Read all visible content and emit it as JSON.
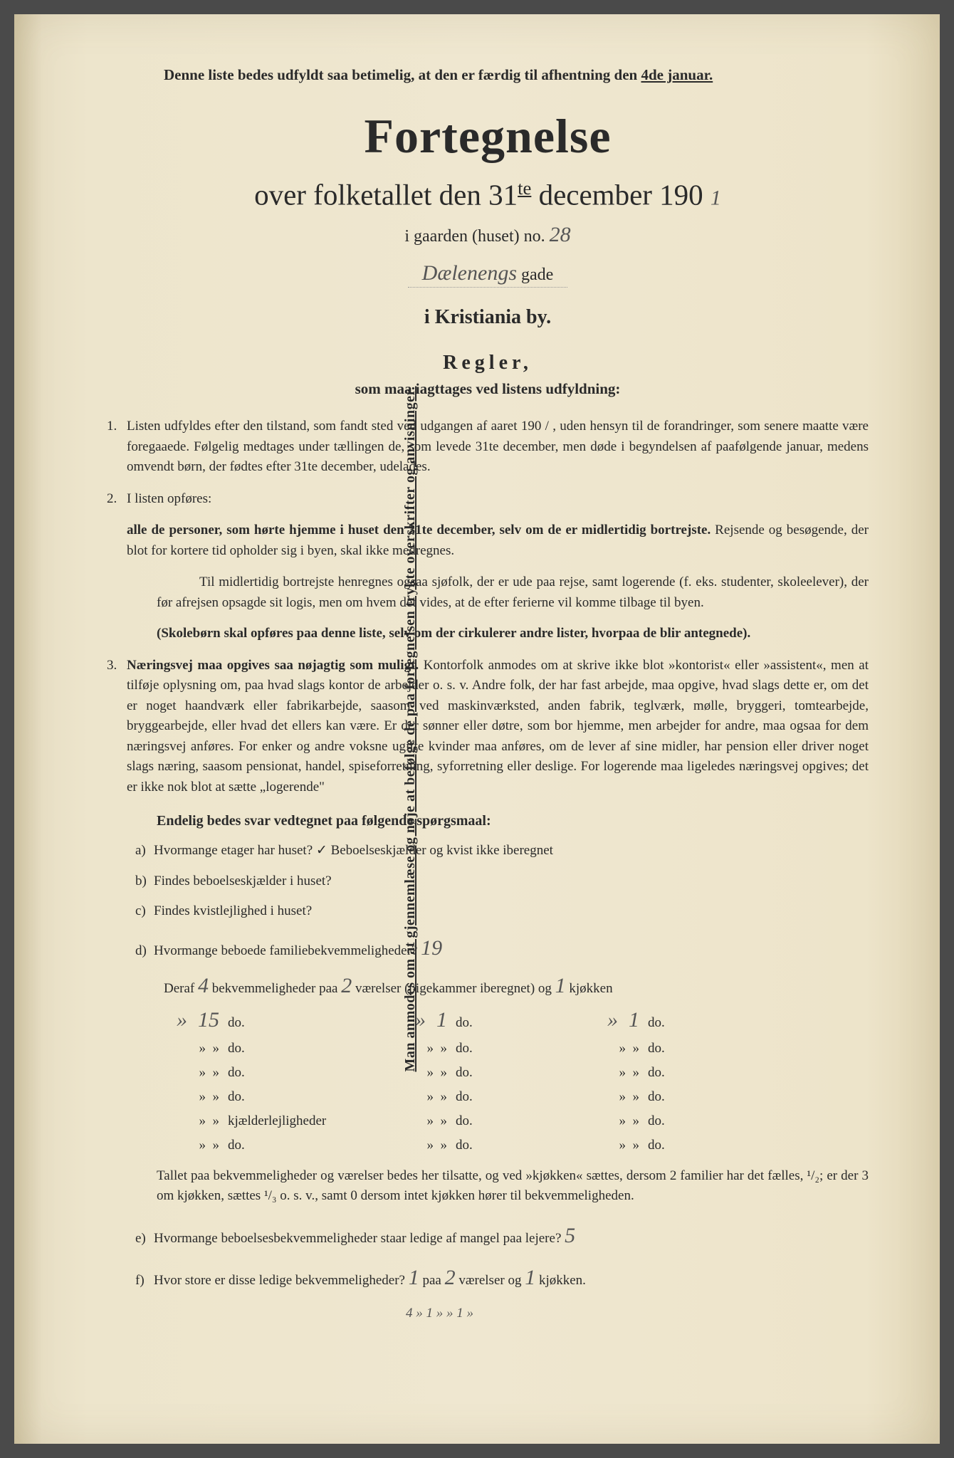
{
  "vertical": "Man anmodes om at gjennemlæse og nøje at befølge de paa fortegnelsen trykte overskrifter og anvisninger.",
  "header_note": "Denne liste bedes udfyldt saa betimelig, at den er færdig til afhentning den ",
  "header_date": "4de januar.",
  "title": "Fortegnelse",
  "subtitle_pre": "over folketallet den 31",
  "subtitle_sup": "te",
  "subtitle_mid": " december 190",
  "year_hand": "1",
  "house_pre": "i gaarden (huset) no. ",
  "house_no": "28",
  "street_hand": "Dælenengs",
  "street_suffix": " gade",
  "city": "i Kristiania by.",
  "regler": "Regler,",
  "regler_sub": "som maa iagttages ved listens udfyldning:",
  "rule1_num": "1.",
  "rule1": "Listen udfyldes efter den tilstand, som fandt sted ved udgangen af aaret 190 / , uden hensyn til de forandringer, som senere maatte være foregaaede. Følgelig medtages under tællingen de, som levede 31te december, men døde i begyndelsen af paafølgende januar, medens omvendt børn, der fødtes efter 31te december, udelades.",
  "rule2_num": "2.",
  "rule2": "I listen opføres:",
  "rule2a": "alle de personer, som hørte hjemme i huset den 31te december, selv om de er midlertidig bortrejste.",
  "rule2a_tail": " Rejsende og besøgende, der blot for kortere tid opholder sig i byen, skal ikke medregnes.",
  "rule2b": "Til midlertidig bortrejste henregnes ogsaa sjøfolk, der er ude paa rejse, samt logerende (f. eks. studenter, skoleelever), der før afrejsen opsagde sit logis, men om hvem det vides, at de efter ferierne vil komme tilbage til byen.",
  "rule2c": "(Skolebørn skal opføres paa denne liste, selv om der cirkulerer andre lister, hvorpaa de blir antegnede).",
  "rule3_num": "3.",
  "rule3_start": "Næringsvej maa opgives saa nøjagtig som muligt.",
  "rule3_body": " Kontorfolk anmodes om at skrive ikke blot »kontorist« eller »assistent«, men at tilføje oplysning om, paa hvad slags kontor de arbejder o. s. v. Andre folk, der har fast arbejde, maa opgive, hvad slags dette er, om det er noget haandværk eller fabrikarbejde, saasom ved maskinværksted, anden fabrik, teglværk, mølle, bryggeri, tomtearbejde, bryggearbejde, eller hvad det ellers kan være. Er der sønner eller døtre, som bor hjemme, men arbejder for andre, maa ogsaa for dem næringsvej anføres. For enker og andre voksne ugifte kvinder maa anføres, om de lever af sine midler, har pension eller driver noget slags næring, saasom pensionat, handel, spiseforretning, syforretning eller deslige. For logerende maa ligeledes næringsvej opgives; det er ikke nok blot at sætte „logerende\"",
  "questions_title": "Endelig bedes svar vedtegnet paa følgende spørgsmaal:",
  "qa_label": "a)",
  "qa": "Hvormange etager har huset? ✓ Beboelseskjælder og kvist ikke iberegnet",
  "qb_label": "b)",
  "qb": "Findes beboelseskjælder i huset?",
  "qc_label": "c)",
  "qc": "Findes kvistlejlighed i huset?",
  "qd_label": "d)",
  "qd": "Hvormange beboede familiebekvemmeligheder? ",
  "qd_hand": "19",
  "deraf_pre": "Deraf ",
  "deraf_n1": "4",
  "deraf_mid1": " bekvemmeligheder paa ",
  "deraf_n2": "2",
  "deraf_mid2": " værelser (pigekammer iberegnet) og ",
  "deraf_n3": "1",
  "deraf_end": " kjøkken",
  "rows": [
    {
      "c1": "15",
      "c2": "do.",
      "c3": "1",
      "c4": "do.",
      "c5": "1",
      "c6": "do."
    },
    {
      "c1": "»",
      "c2": "do.",
      "c3": "»",
      "c4": "do.",
      "c5": "»",
      "c6": "do."
    },
    {
      "c1": "»",
      "c2": "do.",
      "c3": "»",
      "c4": "do.",
      "c5": "»",
      "c6": "do."
    },
    {
      "c1": "»",
      "c2": "do.",
      "c3": "»",
      "c4": "do.",
      "c5": "»",
      "c6": "do."
    },
    {
      "c1": "»",
      "c2": "kjælderlejligheder",
      "c3": "»",
      "c4": "do.",
      "c5": "»",
      "c6": "do."
    },
    {
      "c1": "»",
      "c2": "do.",
      "c3": "»",
      "c4": "do.",
      "c5": "»",
      "c6": "do."
    }
  ],
  "footnote": "Tallet paa bekvemmeligheder og værelser bedes her tilsatte, og ved »kjøkken« sættes, dersom 2 familier har det fælles, ¹/₂; er der 3 om kjøkken, sættes ¹/₃ o. s. v., samt 0 dersom intet kjøkken hører til bekvemmeligheden.",
  "qe_label": "e)",
  "qe": "Hvormange beboelsesbekvemmeligheder staar ledige af mangel paa lejere? ",
  "qe_hand": "5",
  "qf_label": "f)",
  "qf_pre": "Hvor store er disse ledige bekvemmeligheder? ",
  "qf_n1": "1",
  "qf_mid1": " paa ",
  "qf_n2": "2",
  "qf_mid2": " værelser og ",
  "qf_n3": "1",
  "qf_end": " kjøkken.",
  "bottom_hand": "4 » 1 » » 1 »"
}
